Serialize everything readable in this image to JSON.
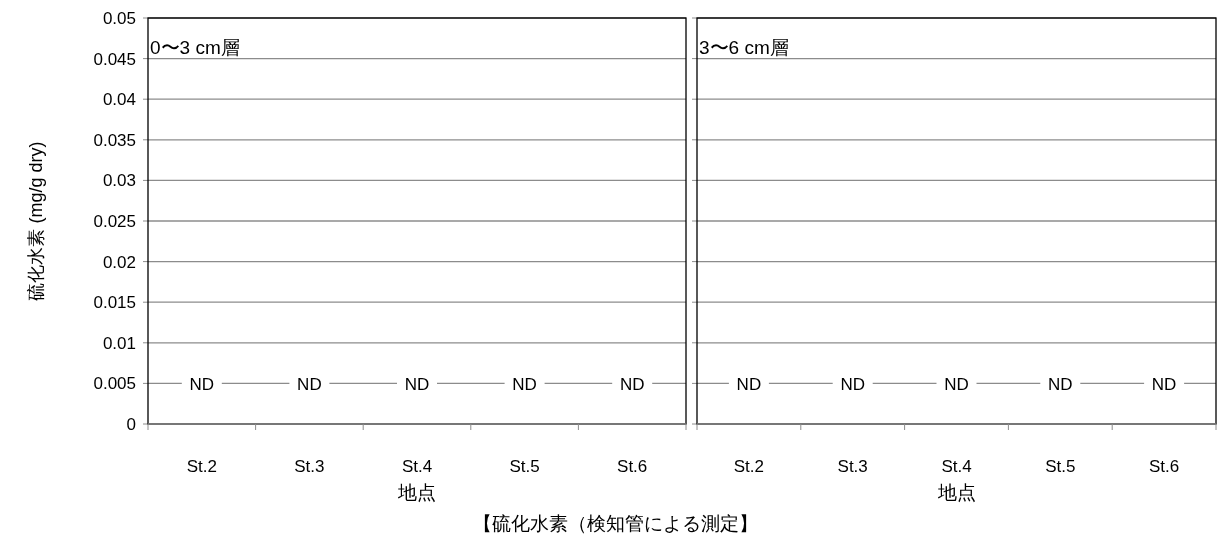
{
  "chart_data": [
    {
      "type": "bar",
      "title": "0〜3 cm層",
      "categories": [
        "St.2",
        "St.3",
        "St.4",
        "St.5",
        "St.6"
      ],
      "values": [
        null,
        null,
        null,
        null,
        null
      ],
      "xlabel": "地点",
      "ylabel": "硫化水素 (mg/g dry)",
      "ylim": [
        0,
        0.05
      ],
      "yticks": [
        0,
        0.005,
        0.01,
        0.015,
        0.02,
        0.025,
        0.03,
        0.035,
        0.04,
        0.045,
        0.05
      ],
      "grid": "y",
      "annotations": [
        {
          "text": "ND",
          "x": "St.2",
          "y": 0.005
        },
        {
          "text": "ND",
          "x": "St.3",
          "y": 0.005
        },
        {
          "text": "ND",
          "x": "St.4",
          "y": 0.005
        },
        {
          "text": "ND",
          "x": "St.5",
          "y": 0.005
        },
        {
          "text": "ND",
          "x": "St.6",
          "y": 0.005
        },
        "【硫化水素（検知管による測定】"
      ]
    },
    {
      "type": "bar",
      "title": "3〜6 cm層",
      "categories": [
        "St.2",
        "St.3",
        "St.4",
        "St.5",
        "St.6"
      ],
      "values": [
        null,
        null,
        null,
        null,
        null
      ],
      "xlabel": "地点",
      "ylim": [
        0,
        0.05
      ],
      "yticks": [
        0,
        0.005,
        0.01,
        0.015,
        0.02,
        0.025,
        0.03,
        0.035,
        0.04,
        0.045,
        0.05
      ],
      "grid": "y",
      "tick_labels": "x",
      "annotations": [
        {
          "text": "ND",
          "x": "St.2",
          "y": 0.005
        },
        {
          "text": "ND",
          "x": "St.3",
          "y": 0.005
        },
        {
          "text": "ND",
          "x": "St.4",
          "y": 0.005
        },
        {
          "text": "ND",
          "x": "St.5",
          "y": 0.005
        },
        {
          "text": "ND",
          "x": "St.6",
          "y": 0.005
        }
      ]
    }
  ]
}
